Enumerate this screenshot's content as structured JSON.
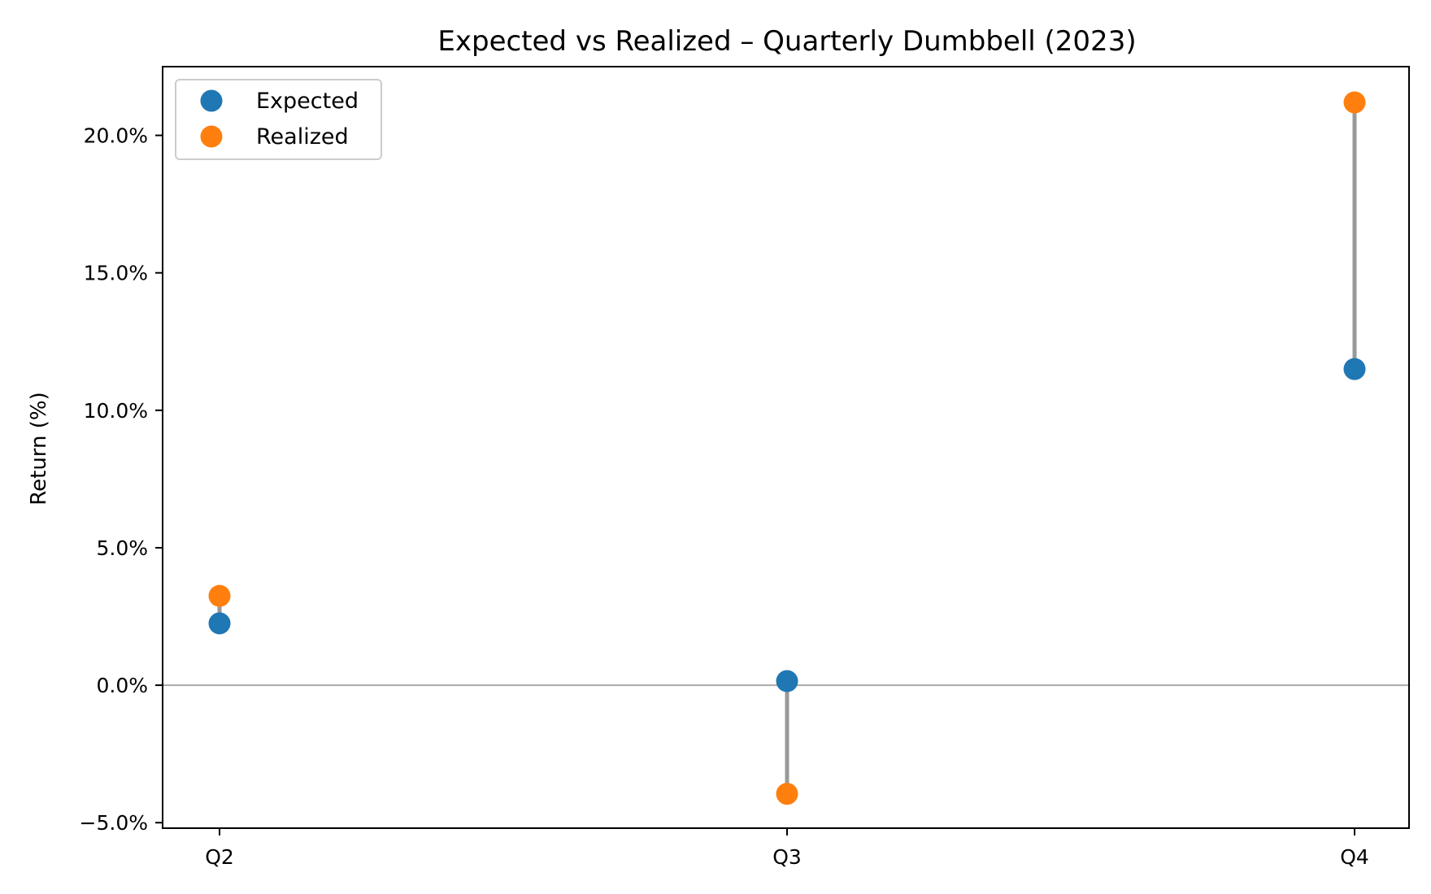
{
  "chart_data": {
    "type": "dumbbell",
    "title": "Expected vs Realized – Quarterly Dumbbell (2023)",
    "xlabel": "",
    "ylabel": "Return (%)",
    "categories": [
      "Q2",
      "Q3",
      "Q4"
    ],
    "series": [
      {
        "name": "Expected",
        "color": "#1f77b4",
        "values": [
          2.25,
          0.15,
          11.5
        ]
      },
      {
        "name": "Realized",
        "color": "#ff7f0e",
        "values": [
          3.25,
          -3.95,
          21.2
        ]
      }
    ],
    "connector_color": "#999999",
    "zero_line": true,
    "ylim": [
      -5.2,
      22.5
    ],
    "yticks": [
      -5,
      0,
      5,
      10,
      15,
      20
    ],
    "ytick_labels": [
      "−5.0%",
      "0.0%",
      "5.0%",
      "10.0%",
      "15.0%",
      "20.0%"
    ],
    "legend": "upper left",
    "grid": false
  }
}
